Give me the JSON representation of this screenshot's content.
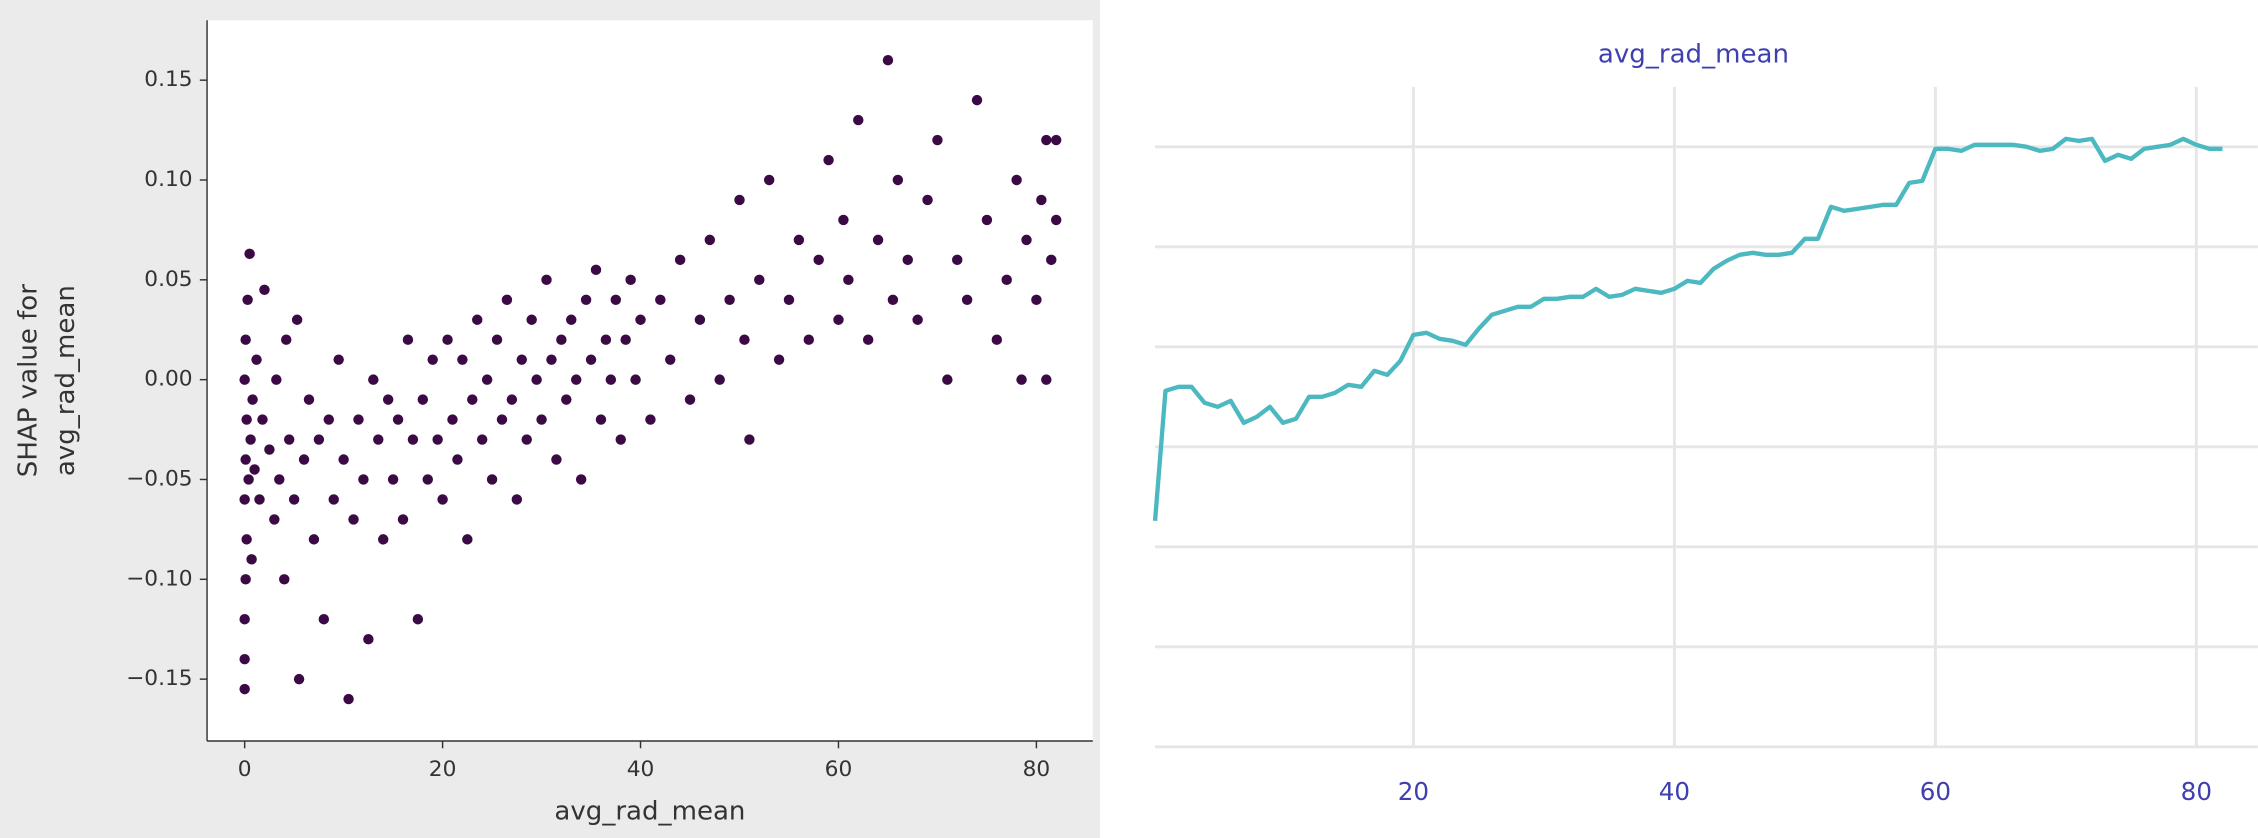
{
  "chart_data": [
    {
      "type": "scatter",
      "xlabel": "avg_rad_mean",
      "ylabel": [
        "SHAP value for",
        "avg_rad_mean"
      ],
      "color": "#3b0a45",
      "xlim": [
        -3.8,
        85.7
      ],
      "ylim": [
        -0.181,
        0.18
      ],
      "xticks": [
        0,
        20,
        40,
        60,
        80
      ],
      "yticks": [
        {
          "value": -0.15,
          "label": "−0.15"
        },
        {
          "value": -0.1,
          "label": "−0.10"
        },
        {
          "value": -0.05,
          "label": "−0.05"
        },
        {
          "value": 0,
          "label": "0.00"
        },
        0.05,
        {
          "value": 0.1,
          "label": "0.10"
        },
        0.15
      ],
      "x": [
        0,
        0,
        0,
        0.1,
        0.2,
        0,
        0.1,
        0.2,
        0,
        0.1,
        0.3,
        0.5,
        0.4,
        0.6,
        0.8,
        1,
        1.2,
        0.7,
        1.5,
        1.8,
        2,
        2.5,
        3,
        3.2,
        3.5,
        4,
        4.2,
        4.5,
        5,
        5.3,
        5.5,
        6,
        6.5,
        7,
        7.5,
        8,
        8.5,
        9,
        9.5,
        10,
        10.5,
        11,
        11.5,
        12,
        12.5,
        13,
        13.5,
        14,
        14.5,
        15,
        15.5,
        16,
        16.5,
        17,
        17.5,
        18,
        18.5,
        19,
        19.5,
        20,
        20.5,
        21,
        21.5,
        22,
        22.5,
        23,
        23.5,
        24,
        24.5,
        25,
        25.5,
        26,
        26.5,
        27,
        27.5,
        28,
        28.5,
        29,
        29.5,
        30,
        30.5,
        31,
        31.5,
        32,
        32.5,
        33,
        33.5,
        34,
        34.5,
        35,
        35.5,
        36,
        36.5,
        37,
        37.5,
        38,
        38.5,
        39,
        39.5,
        40,
        41,
        42,
        43,
        44,
        45,
        46,
        47,
        48,
        49,
        50,
        50.5,
        51,
        52,
        53,
        54,
        55,
        56,
        57,
        58,
        59,
        60,
        60.5,
        61,
        62,
        63,
        64,
        65,
        65.5,
        66,
        67,
        68,
        69,
        70,
        71,
        72,
        73,
        74,
        75,
        76,
        77,
        78,
        78.5,
        79,
        80,
        80.5,
        81,
        81.5,
        82,
        82,
        81
      ],
      "y": [
        -0.155,
        -0.14,
        -0.12,
        -0.1,
        -0.08,
        -0.06,
        -0.04,
        -0.02,
        0,
        0.02,
        0.04,
        0.063,
        -0.05,
        -0.03,
        -0.01,
        -0.045,
        0.01,
        -0.09,
        -0.06,
        -0.02,
        0.045,
        -0.035,
        -0.07,
        0,
        -0.05,
        -0.1,
        0.02,
        -0.03,
        -0.06,
        0.03,
        -0.15,
        -0.04,
        -0.01,
        -0.08,
        -0.03,
        -0.12,
        -0.02,
        -0.06,
        0.01,
        -0.04,
        -0.16,
        -0.07,
        -0.02,
        -0.05,
        -0.13,
        0,
        -0.03,
        -0.08,
        -0.01,
        -0.05,
        -0.02,
        -0.07,
        0.02,
        -0.03,
        -0.12,
        -0.01,
        -0.05,
        0.01,
        -0.03,
        -0.06,
        0.02,
        -0.02,
        -0.04,
        0.01,
        -0.08,
        -0.01,
        0.03,
        -0.03,
        0,
        -0.05,
        0.02,
        -0.02,
        0.04,
        -0.01,
        -0.06,
        0.01,
        -0.03,
        0.03,
        0,
        -0.02,
        0.05,
        0.01,
        -0.04,
        0.02,
        -0.01,
        0.03,
        0,
        -0.05,
        0.04,
        0.01,
        0.055,
        -0.02,
        0.02,
        0,
        0.04,
        -0.03,
        0.02,
        0.05,
        0,
        0.03,
        -0.02,
        0.04,
        0.01,
        0.06,
        -0.01,
        0.03,
        0.07,
        0,
        0.04,
        0.09,
        0.02,
        -0.03,
        0.05,
        0.1,
        0.01,
        0.04,
        0.07,
        0.02,
        0.06,
        0.11,
        0.03,
        0.08,
        0.05,
        0.13,
        0.02,
        0.07,
        0.16,
        0.04,
        0.1,
        0.06,
        0.03,
        0.09,
        0.12,
        0,
        0.06,
        0.04,
        0.14,
        0.08,
        0.02,
        0.05,
        0.1,
        0,
        0.07,
        0.04,
        0.09,
        0.12,
        0.06,
        0.08,
        0.12,
        0
      ]
    },
    {
      "type": "line",
      "title": "avg_rad_mean",
      "color": "#4cb8c0",
      "xlim": [
        0.2,
        82.5
      ],
      "ylim": [
        -0.2,
        0.13
      ],
      "xticks": [
        20,
        40,
        60,
        80
      ],
      "yticks": [
        -0.2,
        -0.15,
        -0.1,
        -0.05,
        0,
        0.05,
        0.1
      ],
      "grid": true,
      "x": [
        0.2,
        1,
        2,
        3,
        4,
        5,
        6,
        7,
        8,
        9,
        10,
        11,
        12,
        13,
        14,
        15,
        16,
        17,
        18,
        19,
        20,
        21,
        22,
        23,
        24,
        25,
        26,
        27,
        28,
        29,
        30,
        31,
        32,
        33,
        34,
        35,
        36,
        37,
        38,
        39,
        40,
        41,
        42,
        43,
        44,
        45,
        46,
        47,
        48,
        49,
        50,
        51,
        52,
        53,
        54,
        55,
        56,
        57,
        58,
        59,
        60,
        61,
        62,
        63,
        64,
        65,
        66,
        67,
        68,
        69,
        70,
        71,
        72,
        73,
        74,
        75,
        76,
        77,
        78,
        79,
        80,
        81,
        82
      ],
      "values": [
        -0.087,
        -0.022,
        -0.02,
        -0.02,
        -0.028,
        -0.03,
        -0.027,
        -0.038,
        -0.035,
        -0.03,
        -0.038,
        -0.036,
        -0.025,
        -0.025,
        -0.023,
        -0.019,
        -0.02,
        -0.012,
        -0.014,
        -0.007,
        0.006,
        0.007,
        0.004,
        0.003,
        0.001,
        0.009,
        0.016,
        0.018,
        0.02,
        0.02,
        0.024,
        0.024,
        0.025,
        0.025,
        0.029,
        0.025,
        0.026,
        0.029,
        0.028,
        0.027,
        0.029,
        0.033,
        0.032,
        0.039,
        0.043,
        0.046,
        0.047,
        0.046,
        0.046,
        0.047,
        0.054,
        0.054,
        0.07,
        0.068,
        0.069,
        0.07,
        0.071,
        0.071,
        0.082,
        0.083,
        0.099,
        0.099,
        0.098,
        0.101,
        0.101,
        0.101,
        0.101,
        0.1,
        0.098,
        0.099,
        0.104,
        0.103,
        0.104,
        0.093,
        0.096,
        0.094,
        0.099,
        0.1,
        0.101,
        0.104,
        0.101,
        0.099,
        0.099
      ]
    }
  ]
}
